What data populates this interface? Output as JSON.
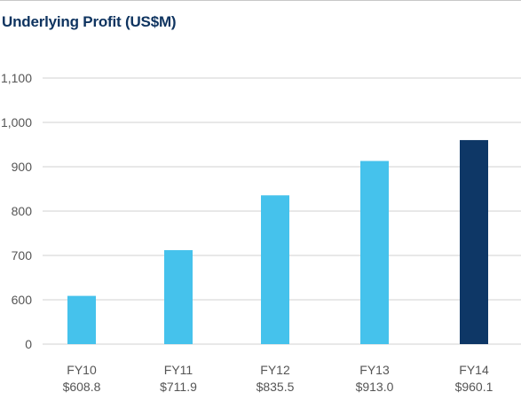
{
  "chart_data": {
    "type": "bar",
    "title": "Underlying Profit (US$M)",
    "categories": [
      "FY10",
      "FY11",
      "FY12",
      "FY13",
      "FY14"
    ],
    "value_labels": [
      "$608.8",
      "$711.9",
      "$835.5",
      "$913.0",
      "$960.1"
    ],
    "values": [
      608.8,
      711.9,
      835.5,
      913.0,
      960.1
    ],
    "y_ticks": [
      "0",
      "600",
      "700",
      "800",
      "900",
      "1,000",
      "1,100"
    ],
    "axis_break": "0 to 500 omitted",
    "grid": true,
    "colors": {
      "bar": "#45c2ec",
      "highlight_bar": "#0e3766",
      "title": "#0f3460",
      "grid": "#d0d0d0"
    },
    "highlight_category": "FY14"
  }
}
